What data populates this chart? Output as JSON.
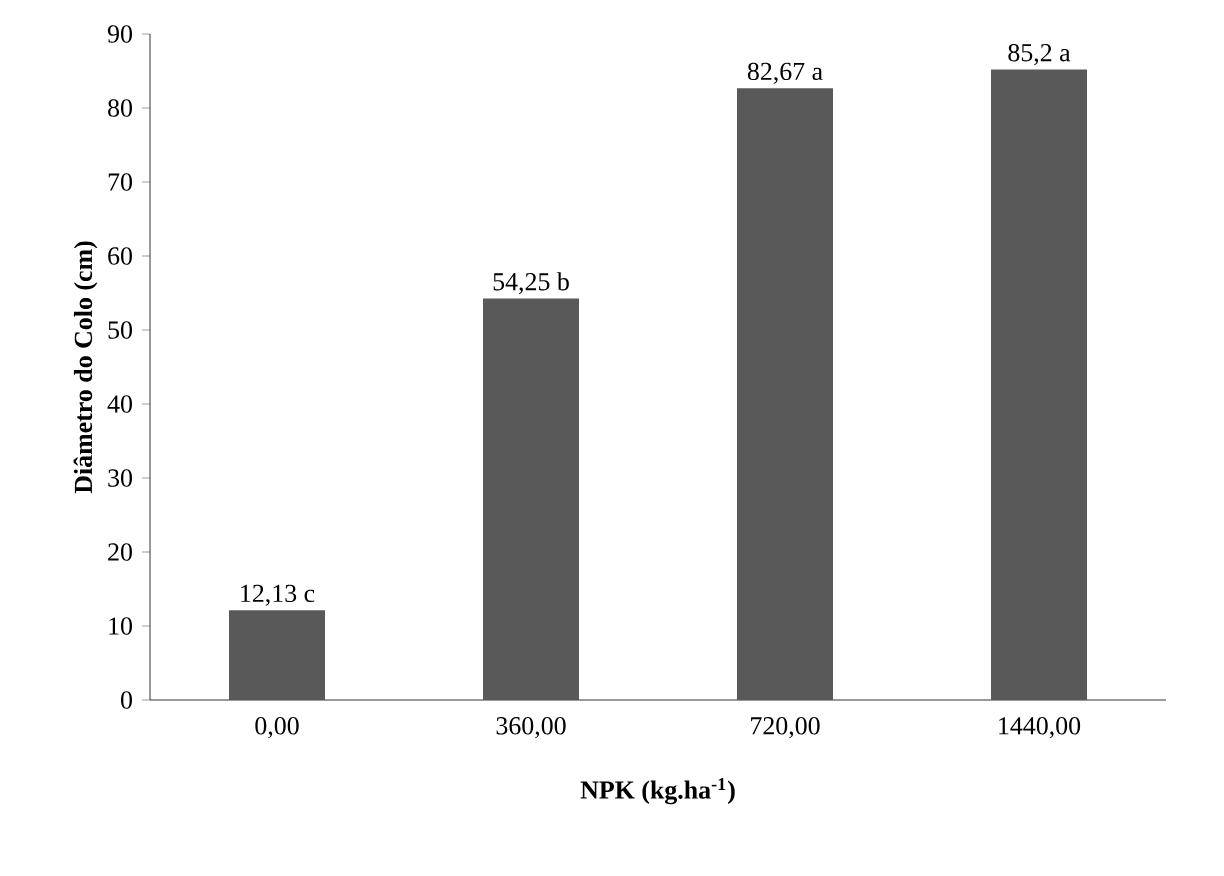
{
  "chart_data": {
    "type": "bar",
    "xlabel": "NPK (kg.ha$^{-1}$)",
    "ylabel": "Diâmetro do Colo (cm)",
    "categories": [
      "0,00",
      "360,00",
      "720,00",
      "1440,00"
    ],
    "values": [
      12.13,
      54.25,
      82.67,
      85.2
    ],
    "value_labels": [
      "12,13 c",
      "54,25 b",
      "82,67 a",
      "85,2 a"
    ],
    "color": "#595959",
    "ylim": [
      0,
      90
    ],
    "yticks": [
      0,
      10,
      20,
      30,
      40,
      50,
      60,
      70,
      80,
      90
    ],
    "grid": false
  }
}
